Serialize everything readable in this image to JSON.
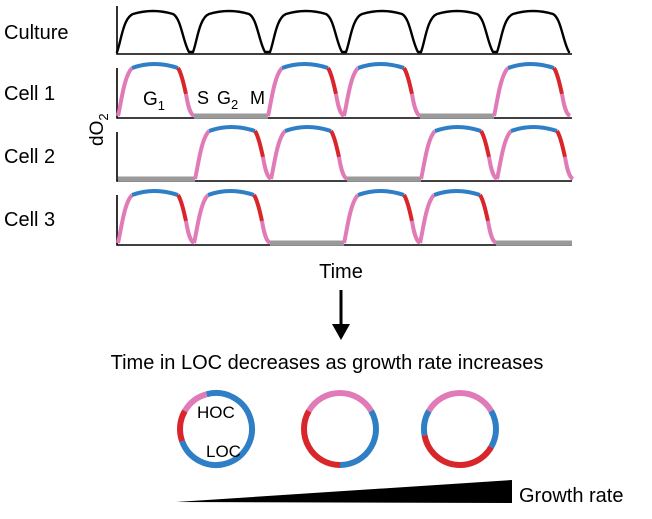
{
  "rows": [
    {
      "label": "Culture"
    },
    {
      "label": "Cell 1"
    },
    {
      "label": "Cell 2"
    },
    {
      "label": "Cell 3"
    }
  ],
  "y_axis_label": "dO",
  "y_axis_subscript": "2",
  "phase_labels": {
    "g": "G",
    "g1_sub": "1",
    "s": "S",
    "g2": "G",
    "g2_sub": "2",
    "m": "M"
  },
  "x_axis_label": "Time",
  "summary_text": "Time in LOC decreases as growth rate increases",
  "ring_labels": {
    "hoc": "HOC",
    "loc": "LOC"
  },
  "growth_label": "Growth rate",
  "colors": {
    "trace": "#000000",
    "g1": "#e07bb8",
    "s": "#2f7fc6",
    "g2m": "#d9262b",
    "quiescent": "#9a9a9a",
    "loc": "#2f7fc6",
    "hoc_pink": "#e07bb8",
    "hoc_red": "#d9262b"
  }
}
